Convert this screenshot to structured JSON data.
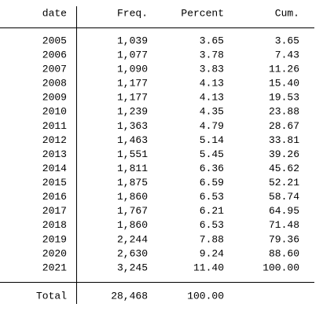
{
  "table": {
    "header": [
      "date",
      "Freq.",
      "Percent",
      "Cum."
    ],
    "rows": [
      [
        "2005",
        "1,039",
        "3.65",
        "3.65"
      ],
      [
        "2006",
        "1,077",
        "3.78",
        "7.43"
      ],
      [
        "2007",
        "1,090",
        "3.83",
        "11.26"
      ],
      [
        "2008",
        "1,177",
        "4.13",
        "15.40"
      ],
      [
        "2009",
        "1,177",
        "4.13",
        "19.53"
      ],
      [
        "2010",
        "1,239",
        "4.35",
        "23.88"
      ],
      [
        "2011",
        "1,363",
        "4.79",
        "28.67"
      ],
      [
        "2012",
        "1,463",
        "5.14",
        "33.81"
      ],
      [
        "2013",
        "1,551",
        "5.45",
        "39.26"
      ],
      [
        "2014",
        "1,811",
        "6.36",
        "45.62"
      ],
      [
        "2015",
        "1,875",
        "6.59",
        "52.21"
      ],
      [
        "2016",
        "1,860",
        "6.53",
        "58.74"
      ],
      [
        "2017",
        "1,767",
        "6.21",
        "64.95"
      ],
      [
        "2018",
        "1,860",
        "6.53",
        "71.48"
      ],
      [
        "2019",
        "2,244",
        "7.88",
        "79.36"
      ],
      [
        "2020",
        "2,630",
        "9.24",
        "88.60"
      ],
      [
        "2021",
        "3,245",
        "11.40",
        "100.00"
      ]
    ],
    "total": [
      "Total",
      "28,468",
      "100.00"
    ]
  }
}
